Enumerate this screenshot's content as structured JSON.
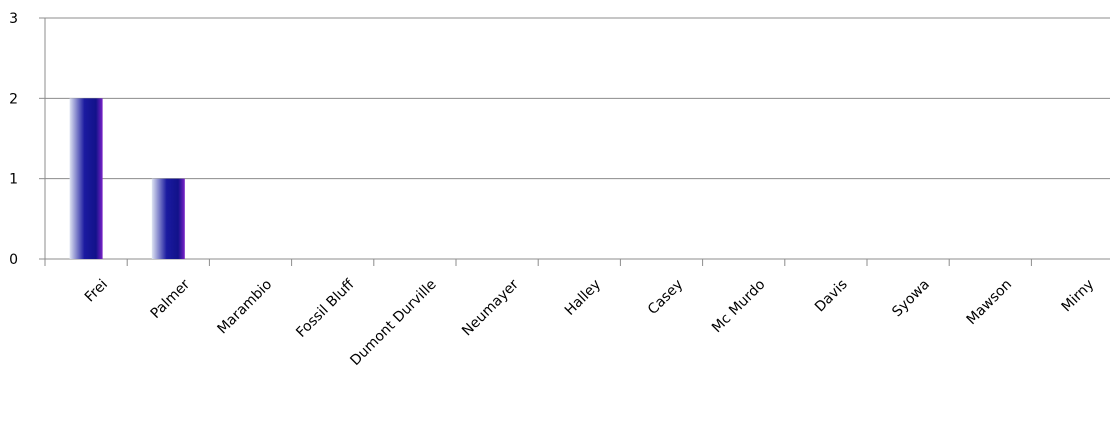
{
  "chart_data": {
    "type": "bar",
    "title": "",
    "xlabel": "",
    "ylabel": "",
    "categories": [
      "Frei",
      "Palmer",
      "Marambio",
      "Fossil Bluff",
      "Dumont Durville",
      "Neumayer",
      "Halley",
      "Casey",
      "Mc Murdo",
      "Davis",
      "Syowa",
      "Mawson",
      "Mirny"
    ],
    "series": [
      {
        "values": [
          2,
          1,
          0,
          0,
          0,
          0,
          0,
          0,
          0,
          0,
          0,
          0,
          0
        ]
      }
    ],
    "ylim": [
      0,
      3
    ],
    "yticks": [
      "0",
      "1",
      "2",
      "3"
    ],
    "grid": true,
    "legend": "none",
    "colors": {
      "bar_light": "#dfe4f2",
      "bar_mid": "#1a1aa0",
      "bar_dark": "#12128a",
      "bar_edge": "#7a22c8",
      "grid": "#8c8c8c",
      "axis": "#8c8c8c"
    }
  }
}
